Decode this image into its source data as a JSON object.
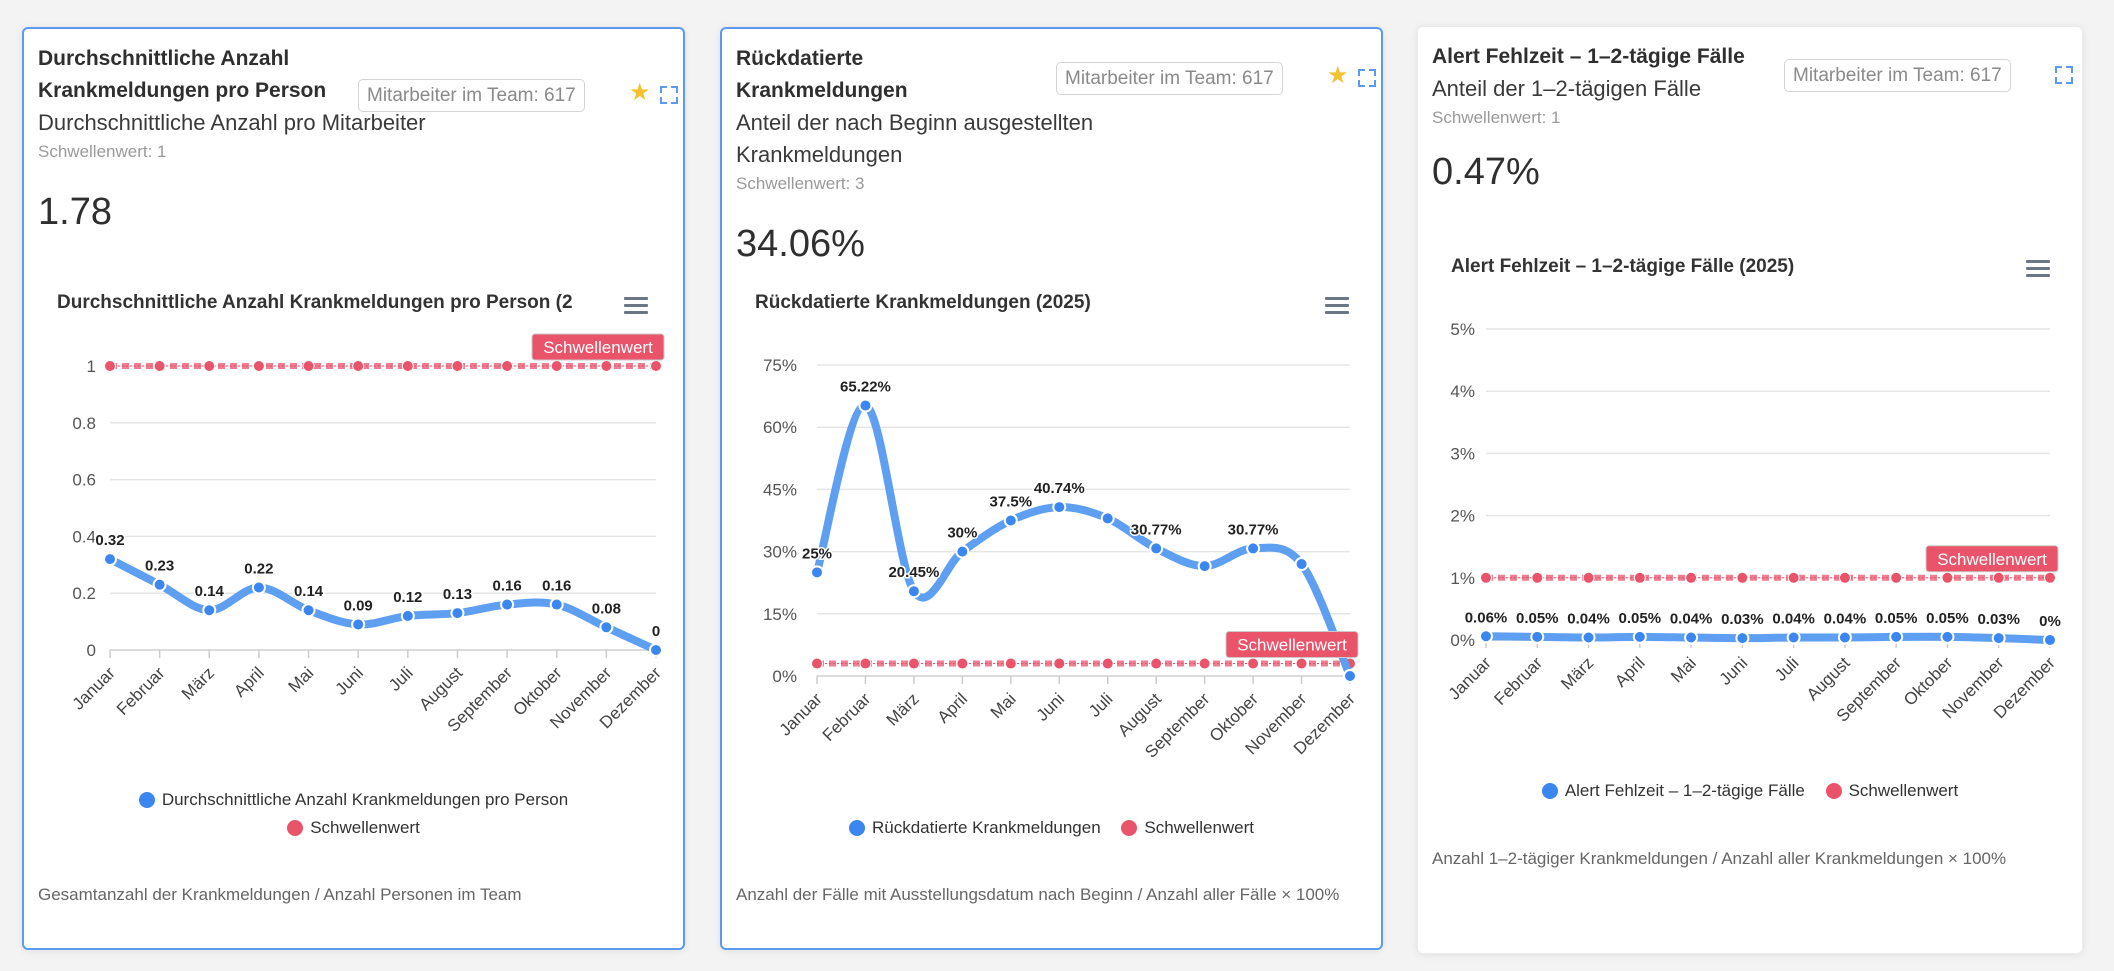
{
  "colors": {
    "series": "#5e9ff2",
    "point": "#3b87ef",
    "threshold": "#e9546b",
    "accent": "#5c9af0"
  },
  "cards": [
    {
      "title": "Durchschnittliche Anzahl Krankmeldungen pro Person",
      "subtitle": "Durchschnittliche Anzahl pro Mitarbeiter",
      "threshold_note": "Schwellenwert: 1",
      "value": "1.78",
      "team_badge": "Mitarbeiter im Team: 617",
      "favorite": true,
      "icons": [
        "star-icon",
        "expand-icon",
        "menu-icon"
      ],
      "footer": "Gesamtanzahl der Krankmeldungen / Anzahl Personen im Team",
      "legend": [
        "Durchschnittliche Anzahl Krankmeldungen pro Person",
        "Schwellenwert"
      ],
      "threshold_label": "Schwellenwert"
    },
    {
      "title": "Rückdatierte Krankmeldungen",
      "subtitle": "Anteil der nach Beginn ausgestellten Krankmeldungen",
      "threshold_note": "Schwellenwert: 3",
      "value": "34.06%",
      "team_badge": "Mitarbeiter im Team: 617",
      "favorite": true,
      "icons": [
        "star-icon",
        "expand-icon",
        "menu-icon"
      ],
      "footer": "Anzahl der Fälle mit Ausstellungsdatum nach Beginn / Anzahl aller Fälle × 100%",
      "legend": [
        "Rückdatierte Krankmeldungen",
        "Schwellenwert"
      ],
      "threshold_label": "Schwellenwert"
    },
    {
      "title": "Alert Fehlzeit – 1–2-tägige Fälle",
      "subtitle": "Anteil der 1–2-tägigen Fälle",
      "threshold_note": "Schwellenwert: 1",
      "value": "0.47%",
      "team_badge": "Mitarbeiter im Team: 617",
      "favorite": false,
      "icons": [
        "expand-icon",
        "menu-icon"
      ],
      "footer": "Anzahl 1–2-tägiger Krankmeldungen / Anzahl aller Krankmeldungen × 100%",
      "legend": [
        "Alert Fehlzeit – 1–2-tägige Fälle",
        "Schwellenwert"
      ],
      "threshold_label": "Schwellenwert"
    }
  ],
  "chart_data": [
    {
      "type": "line",
      "title": "Durchschnittliche Anzahl Krankmeldungen pro Person (2",
      "categories": [
        "Januar",
        "Februar",
        "März",
        "April",
        "Mai",
        "Juni",
        "Juli",
        "August",
        "September",
        "Oktober",
        "November",
        "Dezember"
      ],
      "series": [
        {
          "name": "Durchschnittliche Anzahl Krankmeldungen pro Person",
          "values": [
            0.32,
            0.23,
            0.14,
            0.22,
            0.14,
            0.09,
            0.12,
            0.13,
            0.16,
            0.16,
            0.08,
            0
          ],
          "labels": [
            "0.32",
            "0.23",
            "0.14",
            "0.22",
            "0.14",
            "0.09",
            "0.12",
            "0.13",
            "0.16",
            "0.16",
            "0.08",
            "0"
          ]
        },
        {
          "name": "Schwellenwert",
          "values": [
            1,
            1,
            1,
            1,
            1,
            1,
            1,
            1,
            1,
            1,
            1,
            1
          ]
        }
      ],
      "ylim": [
        0,
        1
      ],
      "yticks": [
        "0",
        "0.2",
        "0.4",
        "0.6",
        "0.8",
        "1"
      ],
      "grid": true,
      "legend": "bottom"
    },
    {
      "type": "line",
      "title": "Rückdatierte Krankmeldungen (2025)",
      "categories": [
        "Januar",
        "Februar",
        "März",
        "April",
        "Mai",
        "Juni",
        "Juli",
        "August",
        "September",
        "Oktober",
        "November",
        "Dezember"
      ],
      "series": [
        {
          "name": "Rückdatierte Krankmeldungen",
          "values": [
            25,
            65.22,
            20.45,
            30,
            37.5,
            40.74,
            38,
            30.77,
            26.5,
            30.77,
            27,
            0
          ],
          "labels": [
            "25%",
            "65.22%",
            "20.45%",
            "30%",
            "37.5%",
            "40.74%",
            null,
            "30.77%",
            null,
            "30.77%",
            null,
            null
          ]
        },
        {
          "name": "Schwellenwert",
          "values": [
            3,
            3,
            3,
            3,
            3,
            3,
            3,
            3,
            3,
            3,
            3,
            3
          ]
        }
      ],
      "ylim": [
        0,
        75
      ],
      "yticks": [
        "0%",
        "15%",
        "30%",
        "45%",
        "60%",
        "75%"
      ],
      "grid": true,
      "legend": "bottom"
    },
    {
      "type": "line",
      "title": "Alert Fehlzeit – 1–2-tägige Fälle (2025)",
      "categories": [
        "Januar",
        "Februar",
        "März",
        "April",
        "Mai",
        "Juni",
        "Juli",
        "August",
        "September",
        "Oktober",
        "November",
        "Dezember"
      ],
      "series": [
        {
          "name": "Alert Fehlzeit – 1–2-tägige Fälle",
          "values": [
            0.06,
            0.05,
            0.04,
            0.05,
            0.04,
            0.03,
            0.04,
            0.04,
            0.05,
            0.05,
            0.03,
            0
          ],
          "labels": [
            "0.06%",
            "0.05%",
            "0.04%",
            "0.05%",
            "0.04%",
            "0.03%",
            "0.04%",
            "0.04%",
            "0.05%",
            "0.05%",
            "0.03%",
            "0%"
          ]
        },
        {
          "name": "Schwellenwert",
          "values": [
            1,
            1,
            1,
            1,
            1,
            1,
            1,
            1,
            1,
            1,
            1,
            1
          ]
        }
      ],
      "ylim": [
        0,
        5
      ],
      "yticks": [
        "0%",
        "1%",
        "2%",
        "3%",
        "4%",
        "5%"
      ],
      "grid": true,
      "legend": "bottom"
    }
  ]
}
